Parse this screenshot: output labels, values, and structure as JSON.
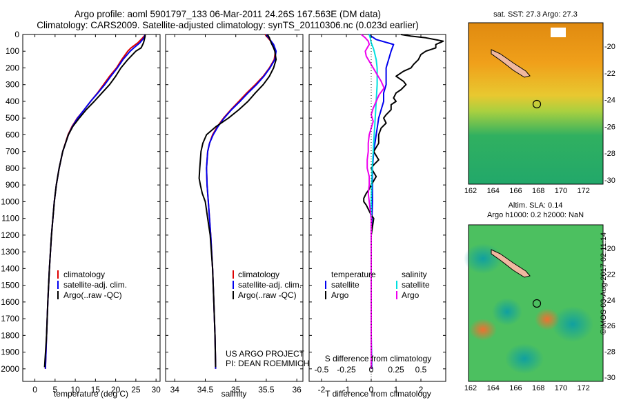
{
  "titles": {
    "line1": "Argo profile: aoml 5901797_133 06-Mar-2011 24.26S 167.563E (DM data)",
    "line2": "Climatology: CARS2009. Satellite-adjusted climatology: synTS_20110306.nc (0.023d earlier)"
  },
  "right_panels": {
    "sst_title": "sat. SST: 27.3 Argo: 27.3",
    "sla_title": "Altim. SLA: 0.14",
    "sla_subtitle": "Argo h1000: 0.2 h2000: NaN",
    "lon_ticks": [
      "162",
      "164",
      "166",
      "168",
      "170",
      "172"
    ],
    "lat_ticks": [
      "-20",
      "-22",
      "-24",
      "-26",
      "-28",
      "-30"
    ],
    "colors": {
      "ocean_warm": "#e49a1a",
      "ocean_cool": "#22a86a",
      "land": "#f0b8a0",
      "coast": "#000000"
    }
  },
  "footer": {
    "project": "US ARGO PROJECT",
    "pi": "PI: DEAN ROEMMICH",
    "stamp": "©IMOS 03-Aug-2017 02:11:14"
  },
  "colors": {
    "climatology": "#dd0000",
    "satellite": "#0000ee",
    "argo": "#000000",
    "salinity_satellite": "#00e0e0",
    "salinity_argo": "#ee00ee"
  },
  "chart_data": [
    {
      "type": "line",
      "xlabel": "temperature (deg C)",
      "ylabel": "",
      "xlim": [
        -3,
        31
      ],
      "ylim": [
        2075,
        0
      ],
      "xticks": [
        "0",
        "5",
        "10",
        "15",
        "20",
        "25",
        "30"
      ],
      "yticks": [
        "0",
        "100",
        "200",
        "300",
        "400",
        "500",
        "600",
        "700",
        "800",
        "900",
        "1000",
        "1100",
        "1200",
        "1300",
        "1400",
        "1500",
        "1600",
        "1700",
        "1800",
        "1900",
        "2000"
      ],
      "legend": [
        "climatology",
        "satellite-adj. clim.",
        "Argo(..raw -QC)"
      ],
      "series": [
        {
          "name": "climatology",
          "depth": [
            0,
            20,
            50,
            80,
            100,
            150,
            200,
            250,
            300,
            350,
            400,
            450,
            500,
            550,
            600,
            700,
            800,
            900,
            1000,
            1200,
            1400,
            1600,
            1800,
            2000
          ],
          "values": [
            27.4,
            26.7,
            25.5,
            23.8,
            23.0,
            21.5,
            20.2,
            18.5,
            17.0,
            15.5,
            13.8,
            12.2,
            10.5,
            9.2,
            8.2,
            6.9,
            6.0,
            5.3,
            4.8,
            4.1,
            3.6,
            3.2,
            2.9,
            2.6
          ]
        },
        {
          "name": "satellite-adj. clim.",
          "depth": [
            0,
            20,
            50,
            80,
            100,
            150,
            200,
            250,
            300,
            350,
            400,
            450,
            500,
            550,
            600,
            700,
            800,
            900,
            1000,
            1200,
            1400,
            1600,
            1800,
            2000
          ],
          "values": [
            27.3,
            27.0,
            26.0,
            24.5,
            23.6,
            21.8,
            20.4,
            18.8,
            17.3,
            15.6,
            13.8,
            12.2,
            10.6,
            9.3,
            8.3,
            6.9,
            6.0,
            5.3,
            4.8,
            4.1,
            3.6,
            3.2,
            2.9,
            2.6
          ]
        },
        {
          "name": "Argo(..raw -QC)",
          "depth": [
            0,
            10,
            20,
            50,
            80,
            100,
            150,
            200,
            250,
            300,
            350,
            400,
            450,
            500,
            550,
            600,
            700,
            800,
            900,
            1000,
            1200,
            1400,
            1600,
            1800,
            1990
          ],
          "values": [
            27.3,
            27.3,
            27.2,
            26.9,
            26.3,
            25.0,
            23.0,
            21.3,
            20.0,
            18.5,
            16.6,
            14.7,
            12.7,
            11.0,
            9.4,
            8.3,
            6.9,
            6.0,
            5.3,
            4.8,
            4.1,
            3.6,
            3.2,
            2.9,
            2.4
          ]
        }
      ]
    },
    {
      "type": "line",
      "xlabel": "salinity",
      "ylabel": "",
      "xlim": [
        33.85,
        36.1
      ],
      "ylim": [
        2075,
        0
      ],
      "xticks": [
        "34",
        "34.5",
        "35",
        "35.5",
        "36"
      ],
      "legend": [
        "climatology",
        "satellite-adj. clim.",
        "Argo(..raw -QC)"
      ],
      "series": [
        {
          "name": "climatology",
          "depth": [
            0,
            30,
            60,
            100,
            150,
            200,
            250,
            300,
            350,
            400,
            450,
            500,
            550,
            600,
            650,
            700,
            800,
            900,
            1000,
            1200,
            1400,
            1600,
            1800,
            2000
          ],
          "values": [
            35.48,
            35.55,
            35.62,
            35.65,
            35.63,
            35.55,
            35.45,
            35.32,
            35.18,
            35.05,
            34.92,
            34.8,
            34.7,
            34.62,
            34.57,
            34.54,
            34.52,
            34.53,
            34.55,
            34.59,
            34.62,
            34.64,
            34.66,
            34.67
          ]
        },
        {
          "name": "satellite-adj. clim.",
          "depth": [
            0,
            30,
            60,
            100,
            150,
            200,
            250,
            300,
            350,
            400,
            450,
            500,
            550,
            600,
            650,
            700,
            800,
            900,
            1000,
            1200,
            1400,
            1600,
            1800,
            2000
          ],
          "values": [
            35.5,
            35.56,
            35.62,
            35.66,
            35.64,
            35.56,
            35.46,
            35.34,
            35.2,
            35.07,
            34.93,
            34.81,
            34.71,
            34.63,
            34.57,
            34.54,
            34.52,
            34.53,
            34.55,
            34.59,
            34.62,
            34.64,
            34.66,
            34.67
          ]
        },
        {
          "name": "Argo(..raw -QC)",
          "depth": [
            0,
            20,
            50,
            80,
            100,
            150,
            200,
            250,
            300,
            350,
            400,
            450,
            500,
            550,
            600,
            650,
            700,
            800,
            860,
            900,
            950,
            1000,
            1100,
            1200,
            1400,
            1600,
            1800,
            1990
          ],
          "values": [
            35.52,
            35.55,
            35.58,
            35.62,
            35.64,
            35.66,
            35.62,
            35.55,
            35.45,
            35.32,
            35.2,
            35.05,
            34.88,
            34.68,
            34.52,
            34.46,
            34.43,
            34.41,
            34.4,
            34.42,
            34.45,
            34.5,
            34.54,
            34.58,
            34.62,
            34.64,
            34.66,
            34.67
          ]
        }
      ]
    },
    {
      "type": "line",
      "xlabel": "T difference from climatology",
      "ylabel": "",
      "xlim": [
        -2.5,
        3.0
      ],
      "ylim": [
        2075,
        0
      ],
      "xticks": [
        "-2",
        "-1",
        "0",
        "1",
        "2"
      ],
      "top_axis": {
        "label": "S difference from climatology",
        "ticks": [
          "-0.5",
          "-0.25",
          "0",
          "0.25",
          "0.5"
        ],
        "range": [
          -0.625,
          0.75
        ]
      },
      "legend": [
        "temperature",
        "satellite",
        "Argo",
        "salinity",
        "satellite",
        "Argo"
      ],
      "series": [
        {
          "name": "temperature satellite",
          "quantity": "T",
          "depth": [
            0,
            30,
            60,
            100,
            150,
            200,
            250,
            300,
            350,
            400,
            450,
            500,
            600,
            700,
            800,
            900,
            1000,
            1200,
            1400,
            1600,
            1800,
            2000
          ],
          "values": [
            -0.1,
            0.2,
            0.9,
            0.8,
            0.7,
            0.6,
            0.6,
            0.6,
            0.5,
            0.5,
            0.4,
            0.3,
            0.2,
            0.1,
            0.05,
            0.05,
            0.05,
            0,
            0,
            0,
            0,
            0.02
          ]
        },
        {
          "name": "temperature Argo",
          "quantity": "T",
          "depth": [
            0,
            10,
            20,
            40,
            60,
            80,
            100,
            120,
            150,
            180,
            200,
            220,
            250,
            280,
            300,
            330,
            350,
            380,
            400,
            420,
            450,
            480,
            500,
            530,
            560,
            600,
            650,
            700,
            750,
            780,
            800,
            850,
            900,
            930,
            950,
            980,
            1000,
            1020,
            1050,
            1080,
            1100,
            1200,
            1400,
            1600,
            1800,
            2000
          ],
          "values": [
            1.2,
            1.6,
            2.2,
            2.9,
            2.6,
            2.6,
            2.2,
            2.0,
            1.9,
            1.7,
            1.6,
            1.3,
            1.0,
            1.3,
            1.4,
            1.2,
            1.0,
            0.9,
            1.0,
            0.8,
            0.8,
            0.6,
            0.5,
            0.6,
            0.4,
            0.3,
            0.3,
            0.1,
            0.3,
            0.1,
            0.0,
            0.2,
            0.0,
            -0.1,
            -0.2,
            -0.3,
            -0.3,
            -0.2,
            -0.1,
            0.0,
            0.1,
            0.0,
            0.0,
            0.0,
            0.0,
            0.0
          ]
        },
        {
          "name": "salinity satellite",
          "quantity": "S",
          "depth": [
            0,
            20,
            50,
            80,
            100,
            150,
            200,
            300,
            400,
            500,
            600,
            700,
            800,
            1000,
            1200,
            1400,
            1600,
            1800,
            2000
          ],
          "values": [
            -0.02,
            -0.01,
            0.0,
            0.02,
            0.03,
            0.05,
            0.06,
            0.06,
            0.05,
            0.04,
            0.03,
            0.02,
            0.01,
            0.0,
            0.0,
            0.0,
            0.0,
            0.0,
            0.0
          ]
        },
        {
          "name": "salinity Argo",
          "quantity": "S",
          "depth": [
            0,
            20,
            40,
            60,
            80,
            100,
            130,
            160,
            200,
            240,
            280,
            320,
            360,
            400,
            440,
            480,
            520,
            560,
            600,
            650,
            700,
            750,
            800,
            850,
            900,
            950,
            1000,
            1050,
            1100,
            1200,
            1400,
            1600,
            1800,
            2000
          ],
          "values": [
            -0.1,
            -0.06,
            -0.03,
            -0.02,
            -0.04,
            -0.06,
            -0.05,
            -0.02,
            0.02,
            0.06,
            0.1,
            0.13,
            0.08,
            0.05,
            0.02,
            0.0,
            0.02,
            0.0,
            -0.02,
            -0.03,
            -0.03,
            -0.04,
            -0.04,
            -0.02,
            -0.02,
            -0.03,
            -0.02,
            -0.01,
            0.0,
            0.0,
            0.0,
            0.0,
            0.0,
            0.0
          ]
        }
      ]
    }
  ]
}
